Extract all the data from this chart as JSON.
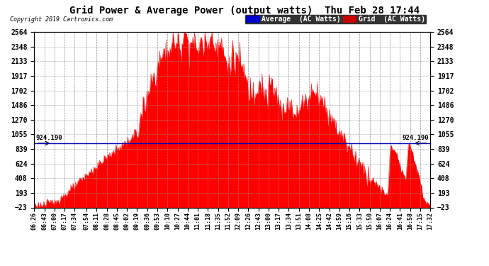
{
  "title": "Grid Power & Average Power (output watts)  Thu Feb 28 17:44",
  "copyright": "Copyright 2019 Cartronics.com",
  "y_ticks": [
    -23.0,
    192.6,
    408.1,
    623.7,
    839.3,
    1054.8,
    1270.4,
    1486.0,
    1701.5,
    1917.1,
    2132.7,
    2348.2,
    2563.8
  ],
  "ylim": [
    -23.0,
    2563.8
  ],
  "average_line": 924.19,
  "average_label": "924.190",
  "grid_color": "#FF0000",
  "average_color": "#0000BB",
  "background_color": "#FFFFFF",
  "legend_avg_bg": "#0000CC",
  "legend_grid_bg": "#CC0000",
  "x_labels": [
    "06:26",
    "06:43",
    "07:00",
    "07:17",
    "07:34",
    "07:54",
    "08:11",
    "08:28",
    "08:45",
    "09:02",
    "09:19",
    "09:36",
    "09:53",
    "10:10",
    "10:27",
    "10:44",
    "11:01",
    "11:18",
    "11:35",
    "11:52",
    "12:09",
    "12:26",
    "12:43",
    "13:00",
    "13:17",
    "13:34",
    "13:51",
    "14:08",
    "14:25",
    "14:42",
    "14:59",
    "15:16",
    "15:33",
    "15:50",
    "16:07",
    "16:24",
    "16:41",
    "16:58",
    "17:15",
    "17:32"
  ],
  "key_points_t": [
    0.0,
    0.01,
    0.025,
    0.04,
    0.055,
    0.07,
    0.085,
    0.1,
    0.115,
    0.13,
    0.145,
    0.16,
    0.175,
    0.19,
    0.205,
    0.22,
    0.235,
    0.248,
    0.255,
    0.262,
    0.27,
    0.278,
    0.285,
    0.292,
    0.3,
    0.308,
    0.315,
    0.322,
    0.33,
    0.338,
    0.345,
    0.352,
    0.36,
    0.368,
    0.375,
    0.382,
    0.39,
    0.398,
    0.405,
    0.412,
    0.42,
    0.428,
    0.435,
    0.442,
    0.448,
    0.455,
    0.46,
    0.465,
    0.47,
    0.475,
    0.48,
    0.485,
    0.49,
    0.495,
    0.5,
    0.505,
    0.51,
    0.515,
    0.52,
    0.525,
    0.53,
    0.535,
    0.54,
    0.548,
    0.555,
    0.562,
    0.57,
    0.578,
    0.585,
    0.592,
    0.6,
    0.608,
    0.615,
    0.622,
    0.63,
    0.638,
    0.645,
    0.652,
    0.66,
    0.668,
    0.675,
    0.682,
    0.69,
    0.698,
    0.705,
    0.712,
    0.72,
    0.728,
    0.735,
    0.742,
    0.75,
    0.758,
    0.765,
    0.772,
    0.78,
    0.788,
    0.795,
    0.802,
    0.81,
    0.818,
    0.825,
    0.832,
    0.84,
    0.848,
    0.855,
    0.862,
    0.87,
    0.878,
    0.885,
    0.892,
    0.9,
    0.908,
    0.915,
    0.922,
    0.93,
    0.938,
    0.945,
    0.952,
    0.96,
    0.968,
    0.975,
    0.982,
    0.99,
    1.0
  ],
  "key_points_v": [
    5,
    10,
    20,
    40,
    80,
    130,
    200,
    280,
    360,
    440,
    520,
    600,
    680,
    750,
    820,
    890,
    950,
    1000,
    1050,
    1150,
    1300,
    1450,
    1550,
    1700,
    1900,
    2000,
    2100,
    2200,
    2250,
    2300,
    2350,
    2400,
    2380,
    2350,
    2500,
    2563,
    2400,
    2450,
    2350,
    2300,
    2420,
    2380,
    2350,
    2480,
    2563,
    2450,
    2380,
    2350,
    2400,
    2320,
    2200,
    2100,
    2050,
    2180,
    2250,
    2100,
    2200,
    2150,
    2050,
    2100,
    1950,
    1800,
    1700,
    1750,
    1650,
    1800,
    1900,
    1750,
    1600,
    1700,
    1800,
    1650,
    1550,
    1400,
    1350,
    1500,
    1600,
    1450,
    1300,
    1400,
    1500,
    1600,
    1550,
    1650,
    1750,
    1700,
    1600,
    1550,
    1450,
    1350,
    1300,
    1250,
    1150,
    1100,
    1000,
    950,
    880,
    800,
    750,
    650,
    600,
    550,
    480,
    420,
    380,
    330,
    280,
    230,
    180,
    140,
    900,
    850,
    750,
    600,
    500,
    350,
    900,
    850,
    700,
    500,
    300,
    150,
    50,
    5
  ]
}
